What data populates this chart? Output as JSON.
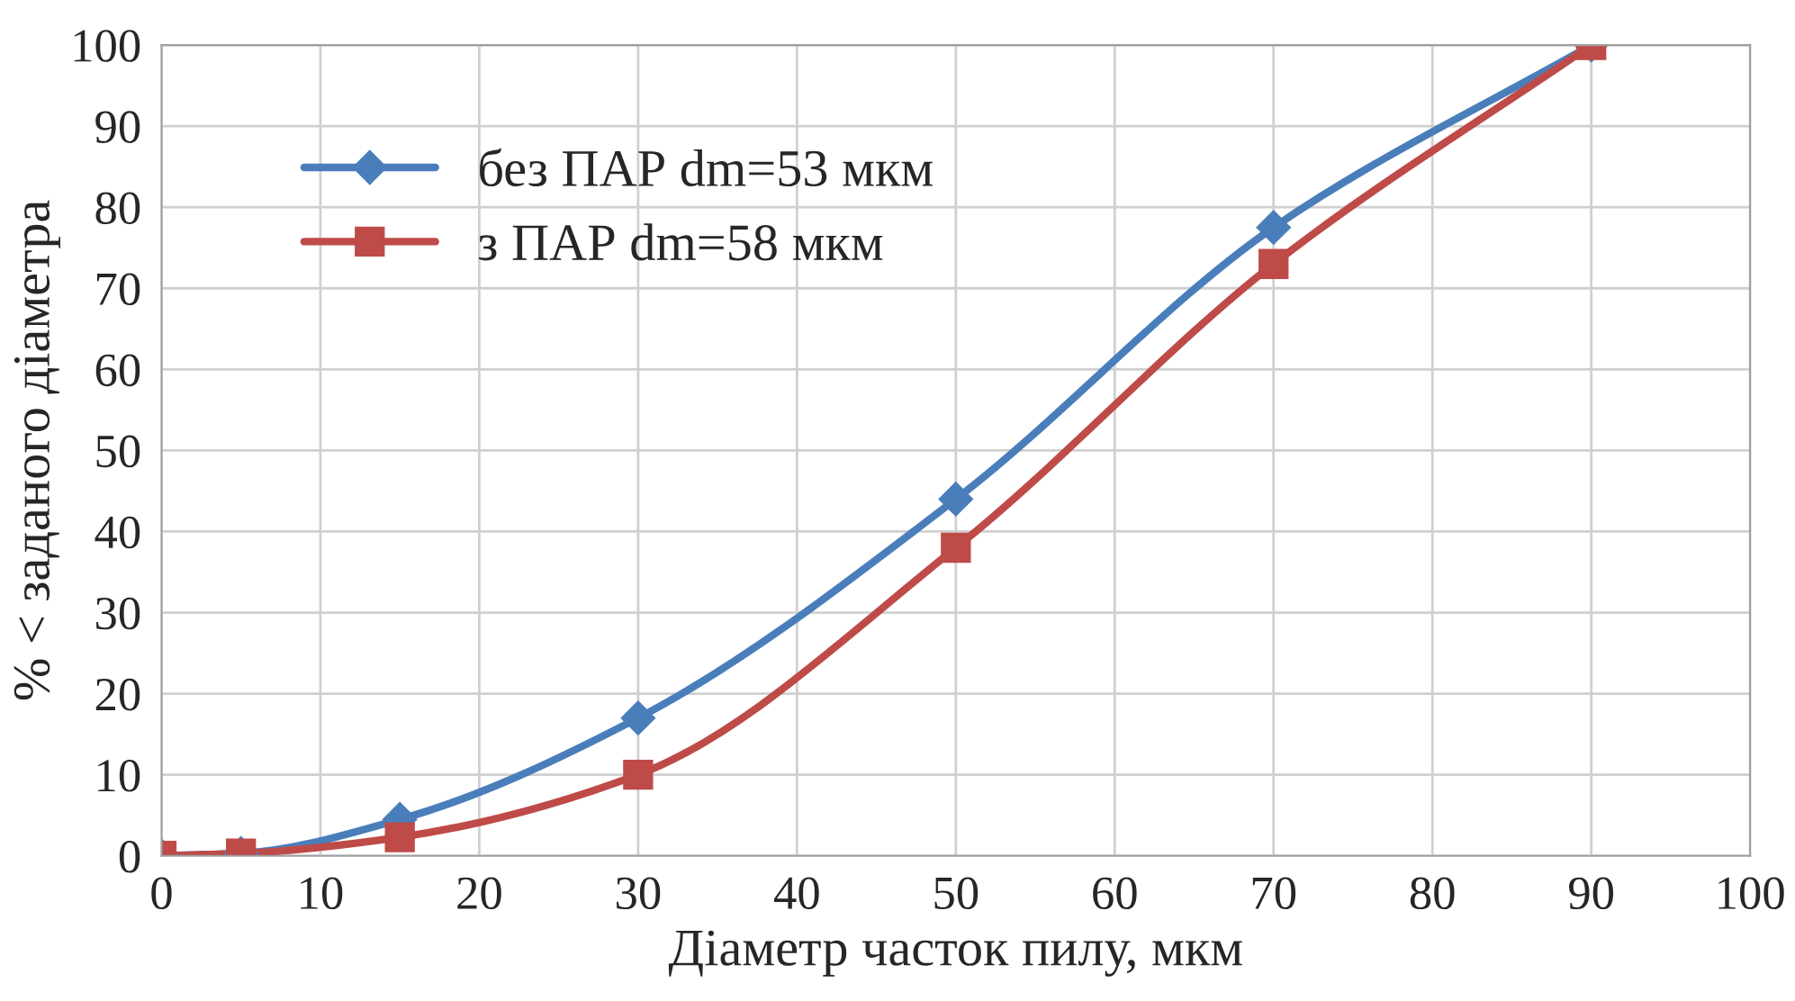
{
  "chart_data": {
    "type": "line",
    "xlabel": "Діаметр часток пилу, мкм",
    "ylabel": "% < заданого діаметра",
    "x": [
      0,
      5,
      15,
      30,
      50,
      70,
      90
    ],
    "series": [
      {
        "name": "без ПАР dm=53 мкм",
        "color": "#4a7ebb",
        "marker": "diamond",
        "values": [
          0,
          0.3,
          4.5,
          17,
          44,
          77.5,
          100
        ]
      },
      {
        "name": "з ПАР dm=58 мкм",
        "color": "#be4b48",
        "marker": "square",
        "values": [
          0,
          0.3,
          2.3,
          10,
          38,
          73,
          100
        ]
      }
    ],
    "xlim": [
      0,
      100
    ],
    "xticks": [
      0,
      10,
      20,
      30,
      40,
      50,
      60,
      70,
      80,
      90,
      100
    ],
    "ylim": [
      0,
      100
    ],
    "yticks": [
      0,
      10,
      20,
      30,
      40,
      50,
      60,
      70,
      80,
      90,
      100
    ],
    "grid": true,
    "legend": "top left"
  }
}
